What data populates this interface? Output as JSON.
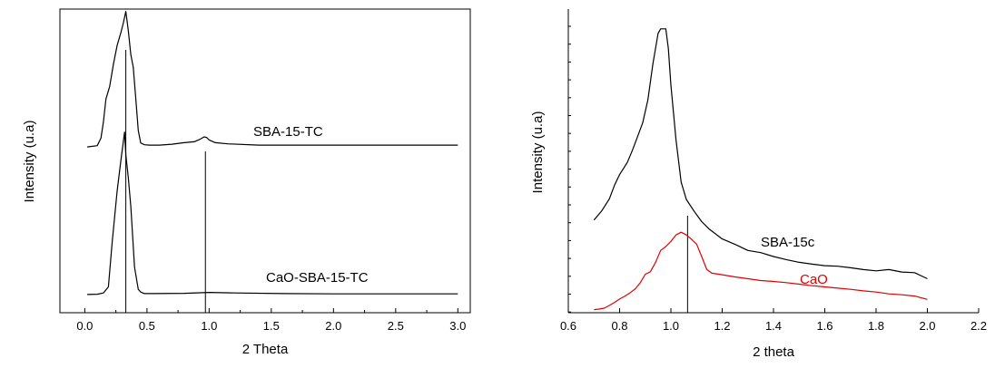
{
  "chart_data": [
    {
      "type": "line",
      "xlabel": "2 Theta",
      "ylabel": "Intensity (u.a)",
      "xlim": [
        -0.2,
        3.1
      ],
      "ylim": [
        0,
        100
      ],
      "xticks": [
        "0.0",
        "0.5",
        "1.0",
        "1.5",
        "2.0",
        "2.5",
        "3.0"
      ],
      "y_ticks_shown": false,
      "reference_lines_x": [
        0.33,
        0.97
      ],
      "series": [
        {
          "name": "SBA-15-TC",
          "color": "#000000",
          "x": [
            0.02,
            0.1,
            0.13,
            0.15,
            0.17,
            0.2,
            0.23,
            0.26,
            0.29,
            0.31,
            0.33,
            0.35,
            0.37,
            0.39,
            0.41,
            0.43,
            0.45,
            0.48,
            0.52,
            0.6,
            0.7,
            0.8,
            0.88,
            0.92,
            0.96,
            0.98,
            1.0,
            1.05,
            1.15,
            1.4,
            1.8,
            2.2,
            2.6,
            3.0
          ],
          "y": [
            54.6,
            55.0,
            57.5,
            62.8,
            70.4,
            74.5,
            81.8,
            88.0,
            92.2,
            95.5,
            99.2,
            93.0,
            85.0,
            80.8,
            70.4,
            60.0,
            55.9,
            55.3,
            55.2,
            55.2,
            55.5,
            56.0,
            56.3,
            57.0,
            57.9,
            57.7,
            56.9,
            56.0,
            55.6,
            55.2,
            55.2,
            55.2,
            55.2,
            55.2
          ]
        },
        {
          "name": "CaO-SBA-15-TC",
          "color": "#000000",
          "x": [
            0.02,
            0.1,
            0.15,
            0.19,
            0.22,
            0.26,
            0.29,
            0.32,
            0.33,
            0.35,
            0.37,
            0.4,
            0.43,
            0.45,
            0.48,
            0.55,
            0.8,
            1.0,
            1.2,
            1.6,
            2.0,
            2.5,
            3.0
          ],
          "y": [
            6.0,
            6.1,
            6.5,
            8.5,
            23.0,
            40.0,
            50.0,
            59.5,
            52.0,
            44.6,
            35.0,
            15.0,
            7.7,
            6.8,
            6.3,
            6.3,
            6.4,
            6.7,
            6.5,
            6.3,
            6.2,
            6.2,
            6.2
          ]
        }
      ],
      "annotations": [
        "SBA-15-TC",
        "CaO-SBA-15-TC"
      ]
    },
    {
      "type": "line",
      "xlabel": "2 theta",
      "ylabel": "Intensity (u.a)",
      "xlim": [
        0.6,
        2.2
      ],
      "ylim": [
        0,
        100
      ],
      "xticks": [
        "0.6",
        "0.8",
        "1.0",
        "1.2",
        "1.4",
        "1.6",
        "1.8",
        "2.0",
        "2.2"
      ],
      "y_ticks_shown": false,
      "reference_lines_x": [
        1.065
      ],
      "series": [
        {
          "name": "SBA-15c",
          "color": "#000000",
          "x": [
            0.7,
            0.73,
            0.76,
            0.78,
            0.8,
            0.83,
            0.85,
            0.87,
            0.89,
            0.91,
            0.93,
            0.95,
            0.96,
            0.98,
            0.99,
            1.0,
            1.02,
            1.04,
            1.06,
            1.09,
            1.12,
            1.15,
            1.2,
            1.25,
            1.3,
            1.35,
            1.4,
            1.45,
            1.5,
            1.55,
            1.6,
            1.65,
            1.7,
            1.75,
            1.8,
            1.85,
            1.9,
            1.95,
            2.0
          ],
          "y": [
            30.5,
            33.5,
            37.5,
            42.0,
            45.5,
            49.5,
            53.5,
            58.0,
            62.5,
            70.0,
            82.0,
            92.0,
            93.5,
            93.5,
            87.0,
            75.0,
            57.0,
            43.0,
            37.3,
            33.5,
            30.0,
            27.5,
            24.3,
            22.5,
            20.5,
            19.8,
            18.5,
            17.5,
            16.6,
            16.0,
            15.5,
            15.3,
            14.8,
            14.2,
            13.8,
            14.2,
            13.4,
            13.2,
            11.2
          ]
        },
        {
          "name": "CaO",
          "color": "#e00000",
          "x": [
            0.7,
            0.72,
            0.74,
            0.76,
            0.78,
            0.8,
            0.82,
            0.84,
            0.86,
            0.88,
            0.9,
            0.92,
            0.94,
            0.96,
            0.98,
            1.0,
            1.02,
            1.04,
            1.06,
            1.08,
            1.1,
            1.12,
            1.14,
            1.16,
            1.2,
            1.25,
            1.3,
            1.35,
            1.4,
            1.45,
            1.5,
            1.55,
            1.6,
            1.65,
            1.7,
            1.75,
            1.8,
            1.85,
            1.9,
            1.95,
            2.0
          ],
          "y": [
            1.0,
            1.2,
            1.5,
            2.4,
            3.4,
            4.5,
            5.4,
            6.5,
            7.8,
            9.8,
            12.7,
            13.5,
            16.5,
            20.5,
            21.8,
            23.5,
            25.6,
            26.5,
            25.6,
            24.2,
            22.6,
            18.5,
            14.2,
            13.0,
            12.5,
            11.8,
            11.2,
            10.6,
            10.3,
            9.9,
            9.4,
            8.9,
            8.5,
            8.1,
            7.7,
            7.2,
            6.8,
            6.2,
            5.9,
            5.5,
            4.4
          ]
        }
      ],
      "annotations": [
        "SBA-15c",
        "CaO"
      ]
    }
  ]
}
